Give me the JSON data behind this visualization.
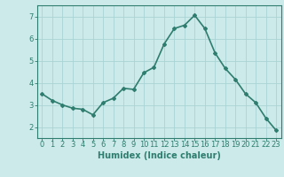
{
  "x": [
    0,
    1,
    2,
    3,
    4,
    5,
    6,
    7,
    8,
    9,
    10,
    11,
    12,
    13,
    14,
    15,
    16,
    17,
    18,
    19,
    20,
    21,
    22,
    23
  ],
  "y": [
    3.5,
    3.2,
    3.0,
    2.85,
    2.8,
    2.55,
    3.1,
    3.3,
    3.75,
    3.7,
    4.45,
    4.7,
    5.75,
    6.45,
    6.6,
    7.05,
    6.45,
    5.35,
    4.65,
    4.15,
    3.5,
    3.1,
    2.4,
    1.85
  ],
  "xlabel": "Humidex (Indice chaleur)",
  "ylim": [
    1.5,
    7.5
  ],
  "xlim": [
    -0.5,
    23.5
  ],
  "yticks": [
    2,
    3,
    4,
    5,
    6,
    7
  ],
  "xticks": [
    0,
    1,
    2,
    3,
    4,
    5,
    6,
    7,
    8,
    9,
    10,
    11,
    12,
    13,
    14,
    15,
    16,
    17,
    18,
    19,
    20,
    21,
    22,
    23
  ],
  "line_color": "#2e7d6e",
  "marker": "D",
  "marker_size": 2.0,
  "bg_color": "#cceaea",
  "grid_color": "#aad4d4",
  "axis_color": "#2e7d6e",
  "label_color": "#2e7d6e",
  "tick_color": "#2e7d6e",
  "xlabel_fontsize": 7,
  "tick_fontsize": 6,
  "linewidth": 1.2
}
